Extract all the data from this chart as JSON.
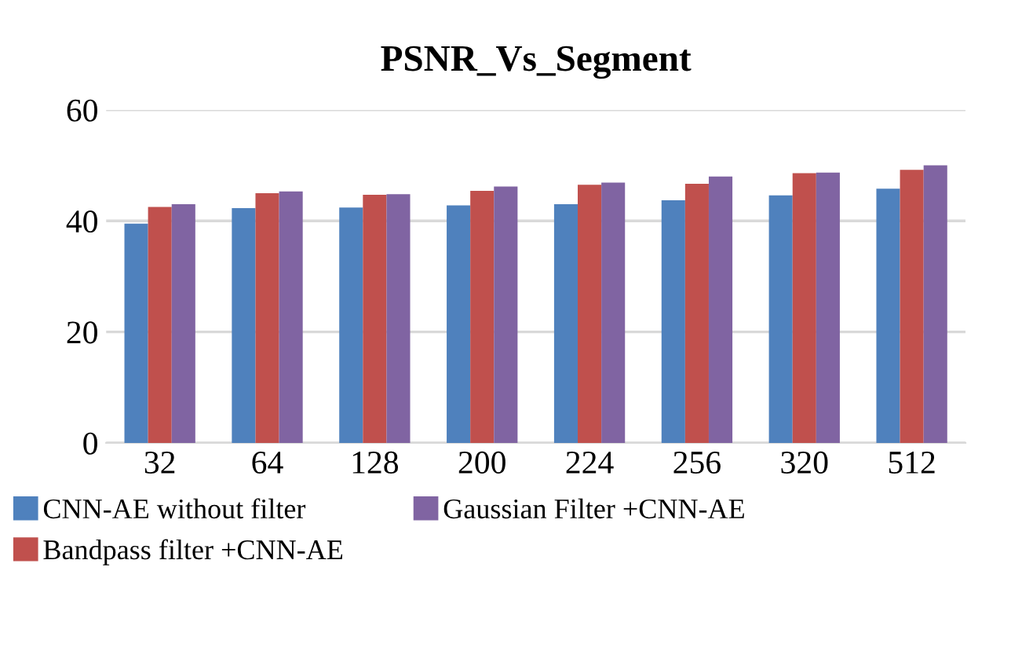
{
  "chart_data": {
    "type": "bar",
    "title": "PSNR_Vs_Segment",
    "categories": [
      "32",
      "64",
      "128",
      "200",
      "224",
      "256",
      "320",
      "512"
    ],
    "series": [
      {
        "name": "CNN-AE without filter",
        "color": "#4f81bd",
        "values": [
          39.5,
          42.3,
          42.4,
          42.8,
          43.0,
          43.7,
          44.6,
          45.8
        ]
      },
      {
        "name": "Bandpass filter +CNN-AE",
        "color": "#c0504d",
        "values": [
          42.5,
          45.0,
          44.7,
          45.4,
          46.5,
          46.7,
          48.6,
          49.2
        ]
      },
      {
        "name": "Gaussian Filter +CNN-AE",
        "color": "#8064a2",
        "values": [
          43.0,
          45.3,
          44.8,
          46.2,
          46.9,
          48.0,
          48.7,
          50.0
        ]
      }
    ],
    "ylim": [
      0,
      60
    ],
    "yticks": [
      0,
      20,
      40,
      60
    ],
    "grid": "y",
    "legend": "bottom"
  }
}
